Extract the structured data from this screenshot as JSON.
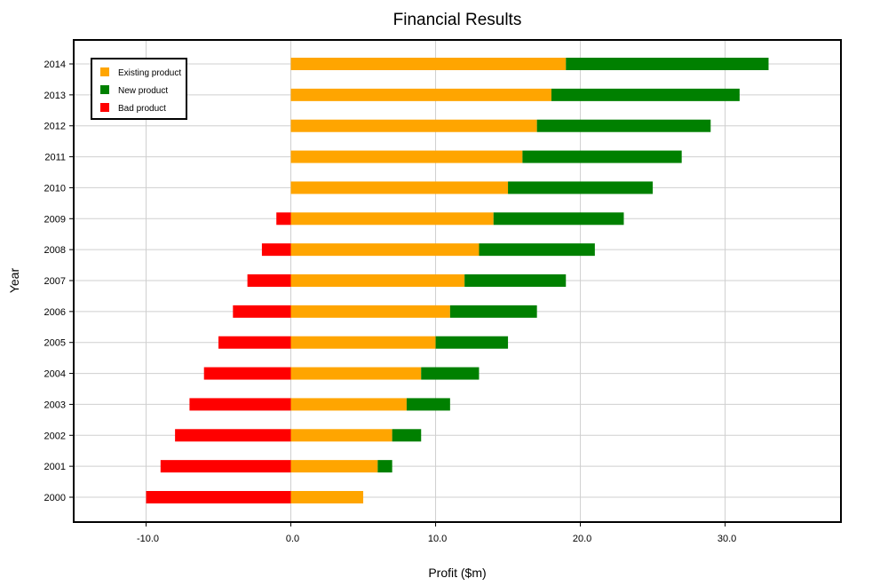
{
  "chart_data": {
    "type": "bar",
    "orientation": "horizontal",
    "stacked": true,
    "title": "Financial Results",
    "xlabel": "Profit ($m)",
    "ylabel": "Year",
    "xlim": [
      -15,
      38
    ],
    "xticks": [
      -10,
      0,
      10,
      20,
      30
    ],
    "xtick_labels": [
      "-10.0",
      "0.0",
      "10.0",
      "20.0",
      "30.0"
    ],
    "grid": true,
    "legend_position": "top-left",
    "categories": [
      "2000",
      "2001",
      "2002",
      "2003",
      "2004",
      "2005",
      "2006",
      "2007",
      "2008",
      "2009",
      "2010",
      "2011",
      "2012",
      "2013",
      "2014"
    ],
    "series": [
      {
        "name": "Existing product",
        "color": "#FFA500",
        "values": [
          5,
          6,
          7,
          8,
          9,
          10,
          11,
          12,
          13,
          14,
          15,
          16,
          17,
          18,
          19
        ]
      },
      {
        "name": "New product",
        "color": "#008000",
        "values": [
          0,
          1,
          2,
          3,
          4,
          5,
          6,
          7,
          8,
          9,
          10,
          11,
          12,
          13,
          14
        ]
      },
      {
        "name": "Bad product",
        "color": "#FF0000",
        "values": [
          -10,
          -9,
          -8,
          -7,
          -6,
          -5,
          -4,
          -3,
          -2,
          -1,
          0,
          0,
          0,
          0,
          0
        ]
      }
    ]
  }
}
